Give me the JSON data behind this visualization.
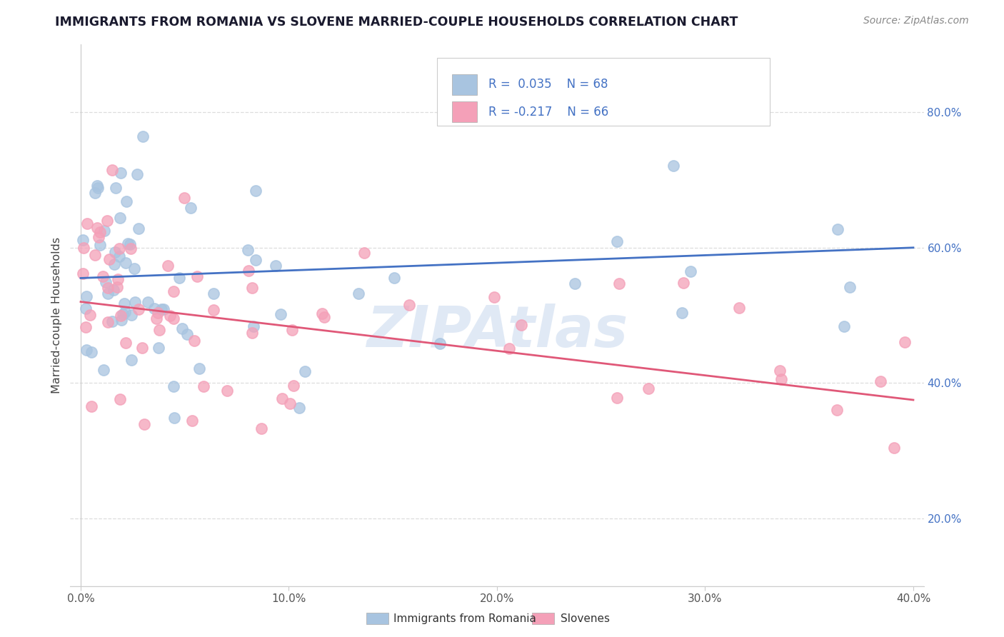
{
  "title": "IMMIGRANTS FROM ROMANIA VS SLOVENE MARRIED-COUPLE HOUSEHOLDS CORRELATION CHART",
  "source_text": "Source: ZipAtlas.com",
  "ylabel": "Married-couple Households",
  "legend_R1": "R =  0.035",
  "legend_N1": "N = 68",
  "legend_R2": "R = -0.217",
  "legend_N2": "N = 66",
  "watermark": "ZIPAtlas",
  "xlim": [
    -0.005,
    0.405
  ],
  "ylim": [
    0.1,
    0.9
  ],
  "ytick_labels": [
    "20.0%",
    "40.0%",
    "60.0%",
    "80.0%"
  ],
  "ytick_values": [
    0.2,
    0.4,
    0.6,
    0.8
  ],
  "xtick_labels": [
    "0.0%",
    "10.0%",
    "20.0%",
    "30.0%",
    "40.0%"
  ],
  "xtick_values": [
    0.0,
    0.1,
    0.2,
    0.3,
    0.4
  ],
  "blue_scatter_color": "#a8c4e0",
  "pink_scatter_color": "#f4a0b8",
  "blue_line_color": "#4472c4",
  "pink_line_color": "#e05878",
  "legend_text_color": "#4472c4",
  "title_color": "#1a1a2e",
  "source_color": "#888888",
  "ylabel_color": "#444444",
  "grid_color": "#dddddd",
  "axis_color": "#cccccc",
  "bottom_legend": [
    "Immigrants from Romania",
    "Slovenes"
  ],
  "blue_line_y0": 0.555,
  "blue_line_y1": 0.6,
  "pink_line_y0": 0.52,
  "pink_line_y1": 0.375
}
